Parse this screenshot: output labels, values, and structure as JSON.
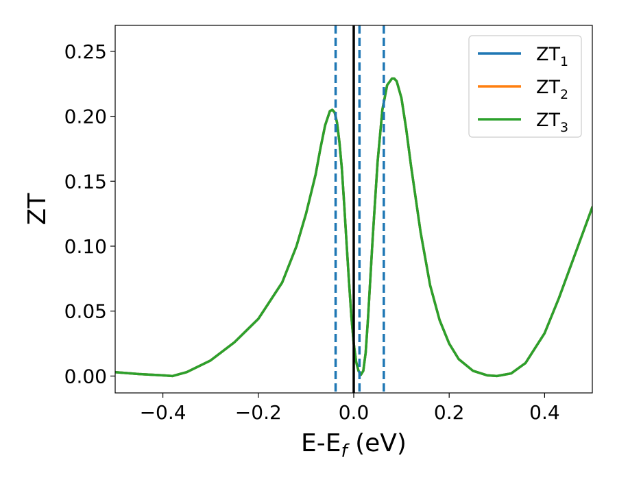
{
  "chart_data": {
    "type": "line",
    "xlabel_main": "E-E",
    "xlabel_sub": "f",
    "xlabel_unit": " (eV)",
    "ylabel": "ZT",
    "xlim": [
      -0.5,
      0.5
    ],
    "ylim": [
      -0.013,
      0.27
    ],
    "x_ticks": [
      {
        "value": -0.4,
        "label": "−0.4"
      },
      {
        "value": -0.2,
        "label": "−0.2"
      },
      {
        "value": 0.0,
        "label": "0.0"
      },
      {
        "value": 0.2,
        "label": "0.2"
      },
      {
        "value": 0.4,
        "label": "0.4"
      }
    ],
    "y_ticks": [
      {
        "value": 0.0,
        "label": "0.00"
      },
      {
        "value": 0.05,
        "label": "0.05"
      },
      {
        "value": 0.1,
        "label": "0.10"
      },
      {
        "value": 0.15,
        "label": "0.15"
      },
      {
        "value": 0.2,
        "label": "0.20"
      },
      {
        "value": 0.25,
        "label": "0.25"
      }
    ],
    "grid": false,
    "legend_position": "top-right",
    "series": [
      {
        "name": "ZT",
        "name_sub": "1",
        "color": "#1f77b4"
      },
      {
        "name": "ZT",
        "name_sub": "2",
        "color": "#ff7f0e"
      },
      {
        "name": "ZT",
        "name_sub": "3",
        "color": "#2ca02c"
      }
    ],
    "curve": {
      "x": [
        -0.5,
        -0.45,
        -0.4,
        -0.38,
        -0.35,
        -0.3,
        -0.25,
        -0.2,
        -0.15,
        -0.12,
        -0.1,
        -0.08,
        -0.07,
        -0.06,
        -0.05,
        -0.045,
        -0.04,
        -0.035,
        -0.03,
        -0.025,
        -0.02,
        -0.015,
        -0.01,
        -0.005,
        0.0,
        0.005,
        0.01,
        0.015,
        0.02,
        0.025,
        0.03,
        0.04,
        0.05,
        0.06,
        0.07,
        0.08,
        0.085,
        0.09,
        0.1,
        0.11,
        0.12,
        0.14,
        0.16,
        0.18,
        0.2,
        0.22,
        0.25,
        0.28,
        0.3,
        0.33,
        0.36,
        0.4,
        0.43,
        0.46,
        0.5
      ],
      "y": [
        0.003,
        0.0015,
        0.0005,
        0.0,
        0.003,
        0.012,
        0.026,
        0.044,
        0.072,
        0.1,
        0.125,
        0.155,
        0.175,
        0.193,
        0.204,
        0.205,
        0.203,
        0.195,
        0.18,
        0.16,
        0.132,
        0.102,
        0.073,
        0.046,
        0.025,
        0.011,
        0.004,
        0.001,
        0.004,
        0.018,
        0.045,
        0.108,
        0.165,
        0.205,
        0.224,
        0.229,
        0.229,
        0.227,
        0.214,
        0.19,
        0.162,
        0.111,
        0.07,
        0.043,
        0.025,
        0.013,
        0.004,
        0.0005,
        0.0,
        0.002,
        0.01,
        0.033,
        0.06,
        0.09,
        0.13
      ]
    },
    "vertical_lines": [
      {
        "x": 0.0,
        "color": "#000000",
        "style": "solid"
      },
      {
        "x": -0.038,
        "color": "#1f77b4",
        "style": "dashed"
      },
      {
        "x": 0.012,
        "color": "#1f77b4",
        "style": "dashed"
      },
      {
        "x": 0.063,
        "color": "#1f77b4",
        "style": "dashed"
      }
    ]
  }
}
